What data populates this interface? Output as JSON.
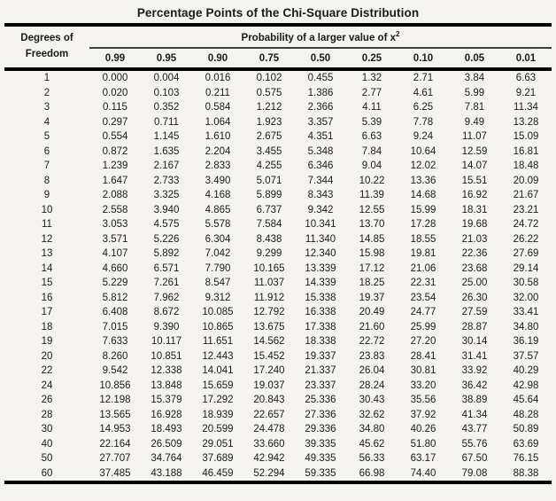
{
  "title": "Percentage Points of the Chi-Square Distribution",
  "colors": {
    "background": "#f4f3f0",
    "thick_rule": "#000000",
    "thin_rule": "#3d3d3d",
    "text": "#1b1b1b"
  },
  "table": {
    "df_header_line1": "Degrees of",
    "df_header_line2": "Freedom",
    "span_header": "Probability of a larger value of x",
    "span_header_superscript": "2",
    "prob_columns": [
      "0.99",
      "0.95",
      "0.90",
      "0.75",
      "0.50",
      "0.25",
      "0.10",
      "0.05",
      "0.01"
    ],
    "rows": [
      {
        "df": "1",
        "values": [
          "0.000",
          "0.004",
          "0.016",
          "0.102",
          "0.455",
          "1.32",
          "2.71",
          "3.84",
          "6.63"
        ]
      },
      {
        "df": "2",
        "values": [
          "0.020",
          "0.103",
          "0.211",
          "0.575",
          "1.386",
          "2.77",
          "4.61",
          "5.99",
          "9.21"
        ]
      },
      {
        "df": "3",
        "values": [
          "0.115",
          "0.352",
          "0.584",
          "1.212",
          "2.366",
          "4.11",
          "6.25",
          "7.81",
          "11.34"
        ]
      },
      {
        "df": "4",
        "values": [
          "0.297",
          "0.711",
          "1.064",
          "1.923",
          "3.357",
          "5.39",
          "7.78",
          "9.49",
          "13.28"
        ]
      },
      {
        "df": "5",
        "values": [
          "0.554",
          "1.145",
          "1.610",
          "2.675",
          "4.351",
          "6.63",
          "9.24",
          "11.07",
          "15.09"
        ]
      },
      {
        "df": "6",
        "values": [
          "0.872",
          "1.635",
          "2.204",
          "3.455",
          "5.348",
          "7.84",
          "10.64",
          "12.59",
          "16.81"
        ]
      },
      {
        "df": "7",
        "values": [
          "1.239",
          "2.167",
          "2.833",
          "4.255",
          "6.346",
          "9.04",
          "12.02",
          "14.07",
          "18.48"
        ]
      },
      {
        "df": "8",
        "values": [
          "1.647",
          "2.733",
          "3.490",
          "5.071",
          "7.344",
          "10.22",
          "13.36",
          "15.51",
          "20.09"
        ]
      },
      {
        "df": "9",
        "values": [
          "2.088",
          "3.325",
          "4.168",
          "5.899",
          "8.343",
          "11.39",
          "14.68",
          "16.92",
          "21.67"
        ]
      },
      {
        "df": "10",
        "values": [
          "2.558",
          "3.940",
          "4.865",
          "6.737",
          "9.342",
          "12.55",
          "15.99",
          "18.31",
          "23.21"
        ]
      },
      {
        "df": "11",
        "values": [
          "3.053",
          "4.575",
          "5.578",
          "7.584",
          "10.341",
          "13.70",
          "17.28",
          "19.68",
          "24.72"
        ]
      },
      {
        "df": "12",
        "values": [
          "3.571",
          "5.226",
          "6.304",
          "8.438",
          "11.340",
          "14.85",
          "18.55",
          "21.03",
          "26.22"
        ]
      },
      {
        "df": "13",
        "values": [
          "4.107",
          "5.892",
          "7.042",
          "9.299",
          "12.340",
          "15.98",
          "19.81",
          "22.36",
          "27.69"
        ]
      },
      {
        "df": "14",
        "values": [
          "4.660",
          "6.571",
          "7.790",
          "10.165",
          "13.339",
          "17.12",
          "21.06",
          "23.68",
          "29.14"
        ]
      },
      {
        "df": "15",
        "values": [
          "5.229",
          "7.261",
          "8.547",
          "11.037",
          "14.339",
          "18.25",
          "22.31",
          "25.00",
          "30.58"
        ]
      },
      {
        "df": "16",
        "values": [
          "5.812",
          "7.962",
          "9.312",
          "11.912",
          "15.338",
          "19.37",
          "23.54",
          "26.30",
          "32.00"
        ]
      },
      {
        "df": "17",
        "values": [
          "6.408",
          "8.672",
          "10.085",
          "12.792",
          "16.338",
          "20.49",
          "24.77",
          "27.59",
          "33.41"
        ]
      },
      {
        "df": "18",
        "values": [
          "7.015",
          "9.390",
          "10.865",
          "13.675",
          "17.338",
          "21.60",
          "25.99",
          "28.87",
          "34.80"
        ]
      },
      {
        "df": "19",
        "values": [
          "7.633",
          "10.117",
          "11.651",
          "14.562",
          "18.338",
          "22.72",
          "27.20",
          "30.14",
          "36.19"
        ]
      },
      {
        "df": "20",
        "values": [
          "8.260",
          "10.851",
          "12.443",
          "15.452",
          "19.337",
          "23.83",
          "28.41",
          "31.41",
          "37.57"
        ]
      },
      {
        "df": "22",
        "values": [
          "9.542",
          "12.338",
          "14.041",
          "17.240",
          "21.337",
          "26.04",
          "30.81",
          "33.92",
          "40.29"
        ]
      },
      {
        "df": "24",
        "values": [
          "10.856",
          "13.848",
          "15.659",
          "19.037",
          "23.337",
          "28.24",
          "33.20",
          "36.42",
          "42.98"
        ]
      },
      {
        "df": "26",
        "values": [
          "12.198",
          "15.379",
          "17.292",
          "20.843",
          "25.336",
          "30.43",
          "35.56",
          "38.89",
          "45.64"
        ]
      },
      {
        "df": "28",
        "values": [
          "13.565",
          "16.928",
          "18.939",
          "22.657",
          "27.336",
          "32.62",
          "37.92",
          "41.34",
          "48.28"
        ]
      },
      {
        "df": "30",
        "values": [
          "14.953",
          "18.493",
          "20.599",
          "24.478",
          "29.336",
          "34.80",
          "40.26",
          "43.77",
          "50.89"
        ]
      },
      {
        "df": "40",
        "values": [
          "22.164",
          "26.509",
          "29.051",
          "33.660",
          "39.335",
          "45.62",
          "51.80",
          "55.76",
          "63.69"
        ]
      },
      {
        "df": "50",
        "values": [
          "27.707",
          "34.764",
          "37.689",
          "42.942",
          "49.335",
          "56.33",
          "63.17",
          "67.50",
          "76.15"
        ]
      },
      {
        "df": "60",
        "values": [
          "37.485",
          "43.188",
          "46.459",
          "52.294",
          "59.335",
          "66.98",
          "74.40",
          "79.08",
          "88.38"
        ]
      }
    ]
  }
}
